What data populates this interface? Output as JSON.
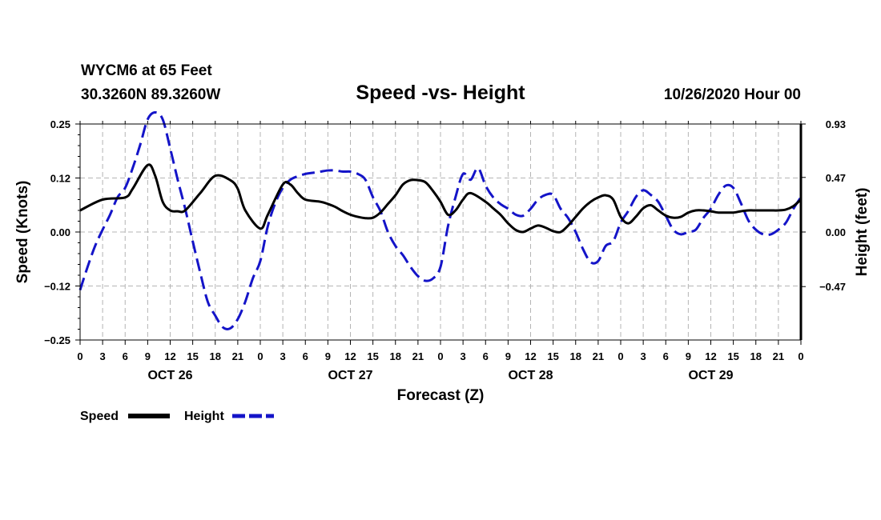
{
  "header": {
    "station": "WYCM6 at 65 Feet",
    "location": "30.3260N 89.3260W",
    "title": "Speed -vs- Height",
    "date": "10/26/2020 Hour 00"
  },
  "legend": {
    "speed_label": "Speed",
    "height_label": "Height"
  },
  "colors": {
    "speed": "#000000",
    "height": "#1414c8",
    "grid": "#b4b4b4"
  },
  "chart_data": {
    "type": "line",
    "title": "Speed -vs- Height",
    "xlabel": "Forecast (Z)",
    "ylabel": "Speed (Knots)",
    "y2label": "Height (feet)",
    "x_hours_range": [
      0,
      96
    ],
    "ylim": [
      -0.25,
      0.25
    ],
    "y2lim": [
      -0.93,
      0.93
    ],
    "y_ticks": [
      {
        "value": -0.25,
        "label": "−0.25"
      },
      {
        "value": -0.125,
        "label": "−0.12"
      },
      {
        "value": 0,
        "label": "0.00"
      },
      {
        "value": 0.125,
        "label": "0.12"
      },
      {
        "value": 0.25,
        "label": "0.25"
      }
    ],
    "y2_ticks": [
      {
        "value": -0.47,
        "label": "−0.47"
      },
      {
        "value": 0,
        "label": "0.00"
      },
      {
        "value": 0.47,
        "label": "0.47"
      },
      {
        "value": 0.93,
        "label": "0.93"
      }
    ],
    "x_tick_labels": [
      "0",
      "3",
      "6",
      "9",
      "12",
      "15",
      "18",
      "21",
      "0",
      "3",
      "6",
      "9",
      "12",
      "15",
      "18",
      "21",
      "0",
      "3",
      "6",
      "9",
      "12",
      "15",
      "18",
      "21",
      "0",
      "3",
      "6",
      "9",
      "12",
      "15",
      "18",
      "21",
      "0"
    ],
    "day_labels": [
      {
        "label": "OCT 26",
        "hour": 12
      },
      {
        "label": "OCT 27",
        "hour": 36
      },
      {
        "label": "OCT 28",
        "hour": 60
      },
      {
        "label": "OCT 29",
        "hour": 84
      }
    ],
    "series": [
      {
        "name": "Speed",
        "axis": "left",
        "style": "solid",
        "x": [
          0,
          3,
          6,
          7,
          9,
          10,
          11,
          12,
          13,
          14,
          16,
          18,
          20,
          21,
          22,
          24,
          25,
          27,
          28,
          29,
          30,
          32,
          33,
          34,
          35,
          36,
          37,
          38,
          39,
          40,
          41,
          42,
          43,
          44,
          45,
          46,
          47,
          48,
          49,
          50,
          51,
          52,
          54,
          55,
          56,
          57,
          58,
          59,
          60,
          61,
          62,
          63,
          64,
          65,
          66,
          67,
          68,
          69,
          70,
          71,
          72,
          73,
          74,
          75,
          76,
          77,
          78,
          79,
          80,
          81,
          82,
          83,
          84,
          85,
          86,
          87,
          88,
          89,
          90,
          91,
          92,
          93,
          94,
          95,
          96
        ],
        "y": [
          0.05,
          0.075,
          0.08,
          0.1,
          0.155,
          0.13,
          0.07,
          0.05,
          0.048,
          0.05,
          0.09,
          0.13,
          0.12,
          0.1,
          0.05,
          0.008,
          0.04,
          0.11,
          0.11,
          0.09,
          0.075,
          0.07,
          0.065,
          0.058,
          0.048,
          0.04,
          0.035,
          0.032,
          0.033,
          0.045,
          0.065,
          0.085,
          0.11,
          0.12,
          0.12,
          0.115,
          0.095,
          0.07,
          0.04,
          0.05,
          0.075,
          0.09,
          0.07,
          0.055,
          0.04,
          0.02,
          0.005,
          0.0,
          0.008,
          0.015,
          0.01,
          0.002,
          0.0,
          0.015,
          0.035,
          0.055,
          0.07,
          0.08,
          0.085,
          0.075,
          0.035,
          0.02,
          0.035,
          0.055,
          0.062,
          0.05,
          0.038,
          0.033,
          0.035,
          0.045,
          0.05,
          0.05,
          0.048,
          0.045,
          0.045,
          0.045,
          0.048,
          0.05,
          0.05,
          0.05,
          0.05,
          0.05,
          0.052,
          0.06,
          0.075
        ]
      },
      {
        "name": "Height",
        "axis": "right",
        "style": "dashed",
        "x": [
          0,
          1,
          2,
          3,
          4,
          5,
          6,
          7,
          8,
          9,
          10,
          11,
          12,
          13,
          14,
          15,
          16,
          17,
          18,
          19,
          20,
          21,
          22,
          23,
          24,
          25,
          26,
          27,
          28,
          29,
          30,
          31,
          32,
          33,
          34,
          35,
          36,
          37,
          38,
          39,
          40,
          41,
          42,
          43,
          44,
          45,
          46,
          47,
          48,
          49,
          50,
          51,
          52,
          53,
          54,
          55,
          56,
          57,
          58,
          59,
          60,
          61,
          62,
          63,
          64,
          65,
          66,
          67,
          68,
          69,
          70,
          71,
          72,
          73,
          74,
          75,
          76,
          77,
          78,
          79,
          80,
          81,
          82,
          83,
          84,
          85,
          86,
          87,
          88,
          89,
          90,
          91,
          92,
          93,
          94,
          95,
          96
        ],
        "y": [
          -0.5,
          -0.3,
          -0.12,
          0.02,
          0.15,
          0.3,
          0.38,
          0.55,
          0.75,
          0.97,
          1.03,
          0.97,
          0.72,
          0.45,
          0.2,
          -0.08,
          -0.35,
          -0.6,
          -0.72,
          -0.82,
          -0.83,
          -0.75,
          -0.6,
          -0.4,
          -0.25,
          0.05,
          0.25,
          0.38,
          0.45,
          0.48,
          0.5,
          0.51,
          0.52,
          0.53,
          0.53,
          0.52,
          0.52,
          0.5,
          0.45,
          0.3,
          0.18,
          0.0,
          -0.12,
          -0.2,
          -0.3,
          -0.38,
          -0.42,
          -0.4,
          -0.3,
          0.05,
          0.3,
          0.5,
          0.45,
          0.55,
          0.4,
          0.3,
          0.24,
          0.2,
          0.15,
          0.14,
          0.2,
          0.28,
          0.32,
          0.32,
          0.2,
          0.12,
          0.0,
          -0.15,
          -0.26,
          -0.25,
          -0.12,
          -0.08,
          0.08,
          0.18,
          0.3,
          0.36,
          0.32,
          0.26,
          0.14,
          0.02,
          -0.02,
          0.0,
          0.02,
          0.12,
          0.2,
          0.32,
          0.4,
          0.38,
          0.25,
          0.1,
          0.02,
          -0.02,
          -0.02,
          0.02,
          0.08,
          0.2,
          0.3
        ]
      }
    ]
  }
}
